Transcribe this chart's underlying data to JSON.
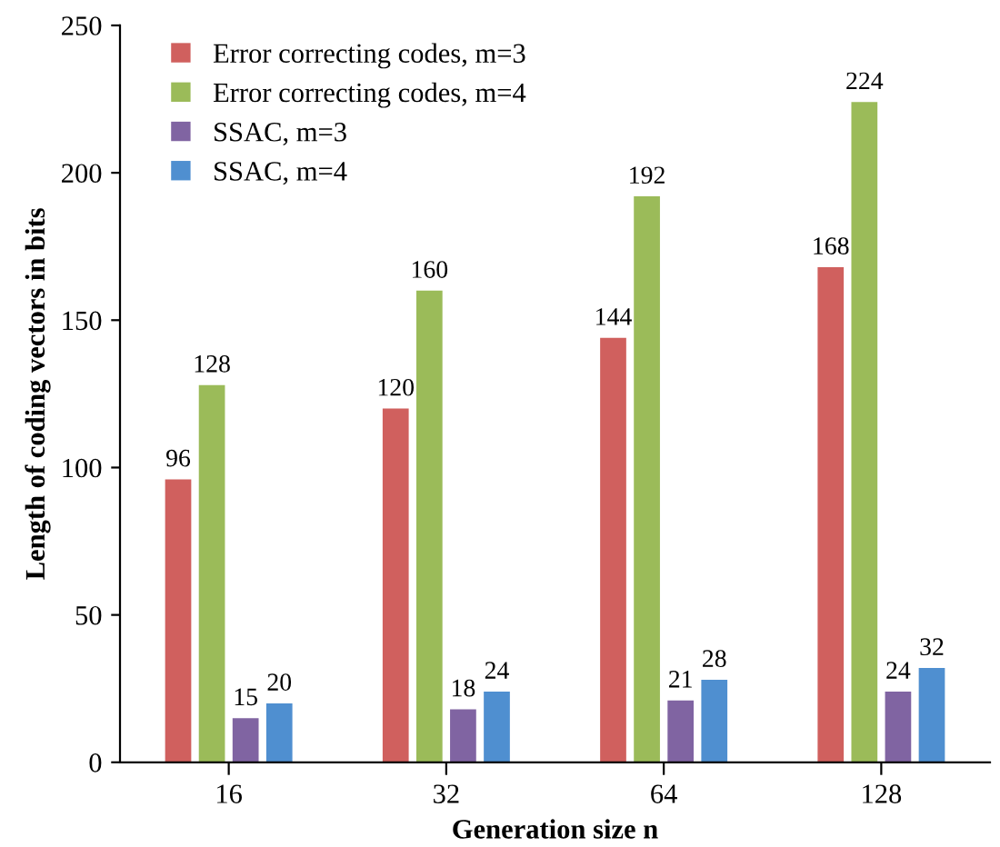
{
  "chart_data": {
    "type": "bar",
    "xlabel": "Generation size n",
    "ylabel": "Length of coding vectors in bits",
    "categories": [
      "16",
      "32",
      "64",
      "128"
    ],
    "series": [
      {
        "name": "Error correcting codes, m=3",
        "color": "#d0605e",
        "values": [
          96,
          120,
          144,
          168
        ]
      },
      {
        "name": "Error correcting codes, m=4",
        "color": "#9bbb59",
        "values": [
          128,
          160,
          192,
          224
        ]
      },
      {
        "name": "SSAC, m=3",
        "color": "#8064a2",
        "values": [
          15,
          18,
          21,
          24
        ]
      },
      {
        "name": "SSAC, m=4",
        "color": "#4f8fd0",
        "values": [
          20,
          24,
          28,
          32
        ]
      }
    ],
    "ylim": [
      0,
      250
    ],
    "yticks": [
      0,
      50,
      100,
      150,
      200,
      250
    ],
    "data_labels": true,
    "legend": "top left",
    "grid": false
  }
}
